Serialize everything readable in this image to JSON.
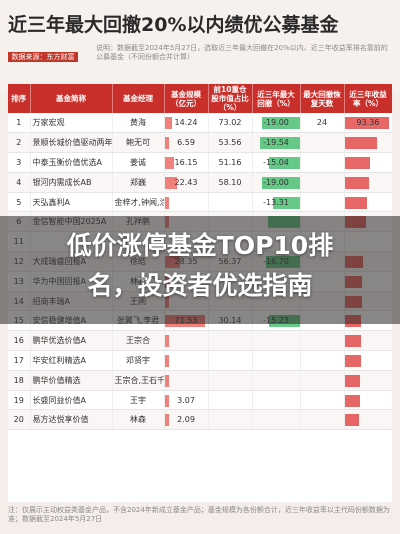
{
  "header": {
    "title": "近三年最大回撤20%以内绩优公募基金",
    "source_badge": "数据来源：东方财富",
    "note": "说明：数据截至2024年5月27日，选取近三年最大回撤在20%以内、近三年收益率排名靠前的公募基金（不同份额合并计算）"
  },
  "table": {
    "columns": [
      "排序",
      "基金简称",
      "基金经理",
      "基金规模（亿元）",
      "前10重仓股市值占比（%）",
      "近三年最大回撤（%）",
      "最大回撤恢复天数",
      "近三年收益率（%）"
    ],
    "rows": [
      {
        "rank": "1",
        "name": "万家宏观",
        "manager": "黄海",
        "size": "14.24",
        "top10": "73.02",
        "drawdown": "-19.00",
        "recovery": "24",
        "return": "93.36",
        "size_v": 14.24,
        "dd_v": 19.0,
        "ret_v": 93.36
      },
      {
        "rank": "2",
        "name": "景顺长城价值驱动两年持有",
        "manager": "鲍无可",
        "size": "6.59",
        "top10": "53.56",
        "drawdown": "-19.54",
        "recovery": "",
        "return": "",
        "size_v": 6.59,
        "dd_v": 19.54,
        "ret_v": 70
      },
      {
        "rank": "3",
        "name": "中泰玉衡价值优选A",
        "manager": "姜诚",
        "size": "16.15",
        "top10": "51.16",
        "drawdown": "-15.04",
        "recovery": "",
        "return": "",
        "size_v": 16.15,
        "dd_v": 15.04,
        "ret_v": 55
      },
      {
        "rank": "4",
        "name": "银河内需成长AB",
        "manager": "郑巍",
        "size": "22.43",
        "top10": "58.10",
        "drawdown": "-19.00",
        "recovery": "",
        "return": "",
        "size_v": 22.43,
        "dd_v": 19.0,
        "ret_v": 52
      },
      {
        "rank": "5",
        "name": "天弘鑫利A",
        "manager": "金梓才,钟闻,涂晨明",
        "size": "",
        "top10": "",
        "drawdown": "-13.31",
        "recovery": "",
        "return": "",
        "size_v": 4,
        "dd_v": 13.31,
        "ret_v": 48
      },
      {
        "rank": "6",
        "name": "金信智能中国2025A",
        "manager": "孔祥鹏",
        "size": "",
        "top10": "",
        "drawdown": "",
        "recovery": "",
        "return": "",
        "size_v": 3,
        "dd_v": 16,
        "ret_v": 46
      },
      {
        "rank": "11",
        "name": "",
        "manager": "",
        "size": "",
        "top10": "",
        "drawdown": "",
        "recovery": "",
        "return": "",
        "size_v": 0,
        "dd_v": 0,
        "ret_v": 0
      },
      {
        "rank": "12",
        "name": "大成瑞盛回报A",
        "manager": "徐皓",
        "size": "28.35",
        "top10": "56.37",
        "drawdown": "-16.70",
        "recovery": "",
        "return": "",
        "size_v": 28.35,
        "dd_v": 16.7,
        "ret_v": 40
      },
      {
        "rank": "13",
        "name": "华为中国回报A",
        "manager": "林鹏",
        "size": "",
        "top10": "",
        "drawdown": "",
        "recovery": "",
        "return": "",
        "size_v": 2,
        "dd_v": 0,
        "ret_v": 38
      },
      {
        "rank": "14",
        "name": "招商丰瑞A",
        "manager": "王刚",
        "size": "",
        "top10": "",
        "drawdown": "",
        "recovery": "",
        "return": "",
        "size_v": 1,
        "dd_v": 0,
        "ret_v": 37
      },
      {
        "rank": "15",
        "name": "安信稳健增值A",
        "manager": "张翼飞,李君",
        "size": "71.53",
        "top10": "30.14",
        "drawdown": "-15.23",
        "recovery": "",
        "return": "",
        "size_v": 71.53,
        "dd_v": 15.23,
        "ret_v": 36
      },
      {
        "rank": "16",
        "name": "鹏华优选价值A",
        "manager": "王宗合",
        "size": "",
        "top10": "",
        "drawdown": "",
        "recovery": "",
        "return": "",
        "size_v": 3,
        "dd_v": 0,
        "ret_v": 35
      },
      {
        "rank": "17",
        "name": "华安红利精选A",
        "manager": "邓贤宇",
        "size": "",
        "top10": "",
        "drawdown": "",
        "recovery": "",
        "return": "",
        "size_v": 2,
        "dd_v": 0,
        "ret_v": 34
      },
      {
        "rank": "18",
        "name": "鹏华价值精选",
        "manager": "王宗合,王石千",
        "size": "",
        "top10": "",
        "drawdown": "",
        "recovery": "",
        "return": "",
        "size_v": 3,
        "dd_v": 0,
        "ret_v": 33
      },
      {
        "rank": "19",
        "name": "长盛同益价值A",
        "manager": "王宇",
        "size": "3.07",
        "top10": "",
        "drawdown": "",
        "recovery": "",
        "return": "",
        "size_v": 3.07,
        "dd_v": 0,
        "ret_v": 32
      },
      {
        "rank": "20",
        "name": "易方达悦享价值",
        "manager": "林森",
        "size": "2.09",
        "top10": "",
        "drawdown": "",
        "recovery": "",
        "return": "",
        "size_v": 2.09,
        "dd_v": 0,
        "ret_v": 31
      }
    ]
  },
  "overlay": {
    "line1": "低价涨停基金TOP10排",
    "line2": "名，投资者优选指南"
  },
  "footer": {
    "text": "注：仅展示主动权益类基金产品，不含2024年新成立基金产品；基金规模为各份额合计，近三年收益率以主代码份额数据为准；数据截至2024年5月27日"
  },
  "colors": {
    "header_red": "#c9302c",
    "size_bar": "#ef6b66",
    "drawdown_green": "#4bbf73",
    "return_red": "#e24c4b"
  }
}
